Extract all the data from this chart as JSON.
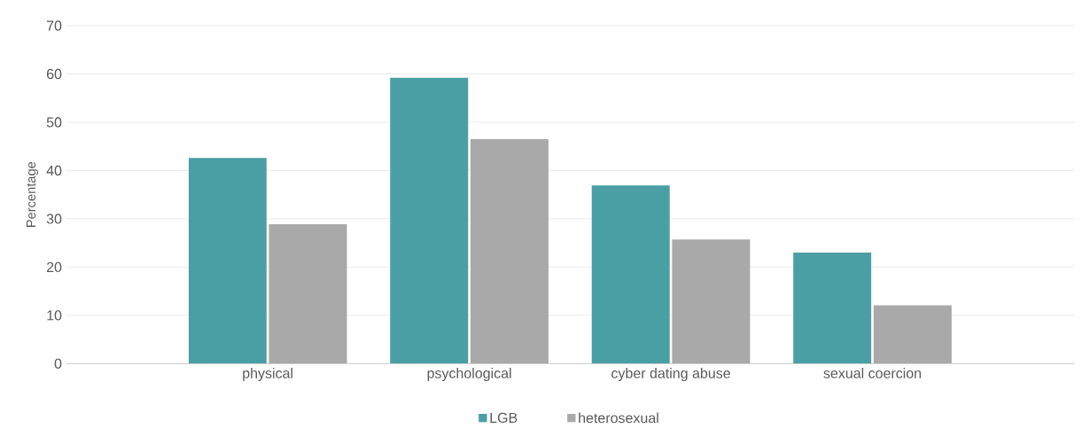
{
  "chart_data": {
    "type": "bar",
    "ylabel": "Percentage",
    "categories": [
      "physical",
      "psychological",
      "cyber dating abuse",
      "sexual coercion"
    ],
    "series": [
      {
        "name": "LGB",
        "color": "#4a9fa4",
        "values": [
          42.6,
          59.2,
          36.9,
          23.0
        ]
      },
      {
        "name": "heterosexual",
        "color": "#a9a9a9",
        "values": [
          28.9,
          46.5,
          25.7,
          12.1
        ]
      }
    ],
    "ylim": [
      0,
      70
    ],
    "yticks": [
      0,
      10,
      20,
      30,
      40,
      50,
      60,
      70
    ],
    "grid": "y",
    "legend": "bottom"
  }
}
